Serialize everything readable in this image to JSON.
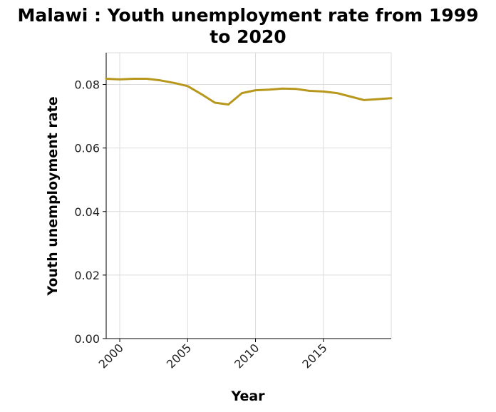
{
  "chart_data": {
    "type": "line",
    "title_line1": "Malawi : Youth unemployment rate from 1999",
    "title_line2": "to 2020",
    "xlabel": "Year",
    "ylabel": "Youth unemployment rate",
    "xlim": [
      1999,
      2020
    ],
    "ylim": [
      0.0,
      0.09
    ],
    "xticks": [
      2000,
      2005,
      2010,
      2015
    ],
    "xtick_labels": [
      "2000",
      "2005",
      "2010",
      "2015"
    ],
    "yticks": [
      0.0,
      0.02,
      0.04,
      0.06,
      0.08
    ],
    "ytick_labels": [
      "0.00",
      "0.02",
      "0.04",
      "0.06",
      "0.08"
    ],
    "grid": true,
    "line_color": "#b8981c",
    "series": [
      {
        "x": [
          1999,
          2000,
          2001,
          2002,
          2003,
          2004,
          2005,
          2006,
          2007,
          2008,
          2009,
          2010,
          2011,
          2012,
          2013,
          2014,
          2015,
          2016,
          2017,
          2018,
          2019,
          2020
        ],
        "values": [
          0.0818,
          0.0816,
          0.0818,
          0.0818,
          0.0813,
          0.0805,
          0.0795,
          0.077,
          0.0743,
          0.0737,
          0.0773,
          0.0782,
          0.0784,
          0.0787,
          0.0786,
          0.078,
          0.0778,
          0.0773,
          0.0762,
          0.0751,
          0.0754,
          0.0757
        ]
      }
    ]
  }
}
